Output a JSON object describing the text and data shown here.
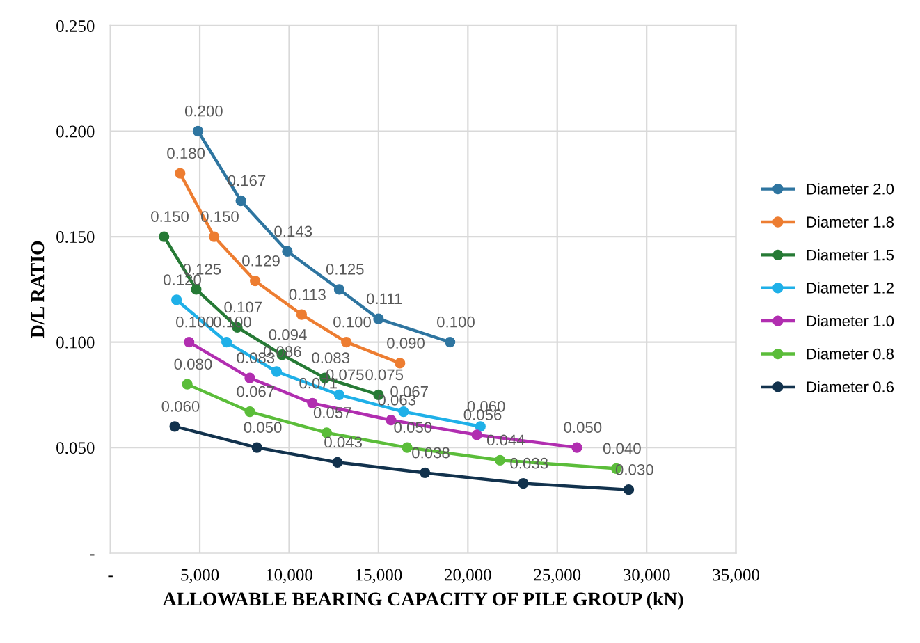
{
  "chart_data": {
    "type": "line",
    "xlabel": "ALLOWABLE BEARING CAPACITY OF PILE GROUP (kN)",
    "ylabel": "D/L RATIO",
    "xlim": [
      0,
      35000
    ],
    "xticks": [
      {
        "value": 0,
        "label": "-"
      },
      {
        "value": 5000,
        "label": "5,000"
      },
      {
        "value": 10000,
        "label": "10,000"
      },
      {
        "value": 15000,
        "label": "15,000"
      },
      {
        "value": 20000,
        "label": "20,000"
      },
      {
        "value": 25000,
        "label": "25,000"
      },
      {
        "value": 30000,
        "label": "30,000"
      },
      {
        "value": 35000,
        "label": "35,000"
      }
    ],
    "ylim": [
      0,
      0.25
    ],
    "yticks": [
      {
        "value": 0,
        "label": "-"
      },
      {
        "value": 0.05,
        "label": "0.050"
      },
      {
        "value": 0.1,
        "label": "0.100"
      },
      {
        "value": 0.15,
        "label": "0.150"
      },
      {
        "value": 0.2,
        "label": "0.200"
      },
      {
        "value": 0.25,
        "label": "0.250"
      }
    ],
    "grid": true,
    "legend": "right",
    "marker": "circle",
    "line_style": "solid",
    "series": [
      {
        "name": "Diameter 2.0",
        "color": "#2e75a0",
        "x": [
          4900,
          7300,
          9900,
          12800,
          15000,
          19000
        ],
        "values": [
          0.2,
          0.167,
          0.143,
          0.125,
          0.111,
          0.1
        ],
        "value_labels": [
          "0.200",
          "0.167",
          "0.143",
          "0.125",
          "0.111",
          "0.100"
        ]
      },
      {
        "name": "Diameter 1.8",
        "color": "#ed7d31",
        "x": [
          3900,
          5800,
          8100,
          10700,
          13200,
          16200
        ],
        "values": [
          0.18,
          0.15,
          0.129,
          0.113,
          0.1,
          0.09
        ],
        "value_labels": [
          "0.180",
          "0.150",
          "0.129",
          "0.113",
          "0.100",
          "0.090"
        ]
      },
      {
        "name": "Diameter 1.5",
        "color": "#267a35",
        "x": [
          3000,
          4800,
          7100,
          9600,
          12000,
          15000
        ],
        "values": [
          0.15,
          0.125,
          0.107,
          0.094,
          0.083,
          0.075
        ],
        "value_labels": [
          "0.150",
          "0.125",
          "0.107",
          "0.094",
          "0.083",
          "0.075"
        ]
      },
      {
        "name": "Diameter 1.2",
        "color": "#1fb0e8",
        "x": [
          3700,
          6500,
          9300,
          12800,
          16400,
          20700
        ],
        "values": [
          0.12,
          0.1,
          0.086,
          0.075,
          0.067,
          0.06
        ],
        "value_labels": [
          "0.120",
          "0.100",
          "0.086",
          "0.075",
          "0.067",
          "0.060"
        ]
      },
      {
        "name": "Diameter 1.0",
        "color": "#b12eb0",
        "x": [
          4400,
          7800,
          11300,
          15700,
          20500,
          26100
        ],
        "values": [
          0.1,
          0.083,
          0.071,
          0.063,
          0.056,
          0.05
        ],
        "value_labels": [
          "0.100",
          "0.083",
          "0.071",
          "0.063",
          "0.056",
          "0.050"
        ]
      },
      {
        "name": "Diameter 0.8",
        "color": "#5bbd3a",
        "x": [
          4300,
          7800,
          12100,
          16600,
          21800,
          28300
        ],
        "values": [
          0.08,
          0.067,
          0.057,
          0.05,
          0.044,
          0.04
        ],
        "value_labels": [
          "0.080",
          "0.067",
          "0.057",
          "0.050",
          "0.044",
          "0.040"
        ]
      },
      {
        "name": "Diameter 0.6",
        "color": "#12324d",
        "x": [
          3600,
          8200,
          12700,
          17600,
          23100,
          29000
        ],
        "values": [
          0.06,
          0.05,
          0.043,
          0.038,
          0.033,
          0.03
        ],
        "value_labels": [
          "0.060",
          "0.050",
          "0.043",
          "0.038",
          "0.033",
          "0.030"
        ]
      }
    ]
  }
}
